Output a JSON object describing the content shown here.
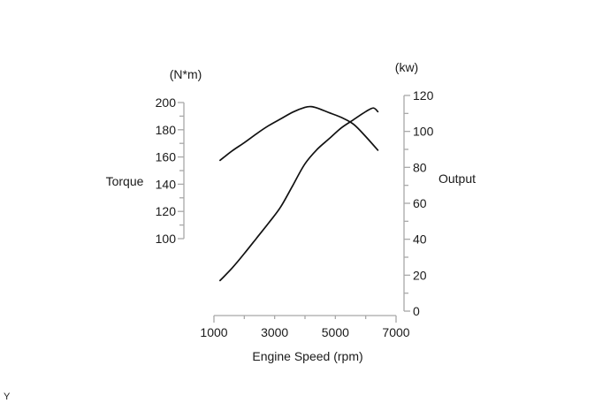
{
  "figure": {
    "corner_label": "Y",
    "background_color": "#ffffff",
    "axis_color": "#a8a8a8",
    "curve_color": "#111111",
    "text_color": "#1a1a1a"
  },
  "chart_data": {
    "type": "line",
    "title": "",
    "grid": false,
    "legend": "none",
    "x_axis": {
      "label": "Engine Speed (rpm)",
      "min": 1000,
      "max": 7000,
      "major_ticks": [
        1000,
        2000,
        3000,
        4000,
        5000,
        6000,
        7000
      ],
      "labeled_ticks": [
        1000,
        3000,
        5000,
        7000
      ]
    },
    "left_axis": {
      "unit_label": "(N*m)",
      "title": "Torque",
      "min": 100,
      "max": 200,
      "major_ticks": [
        100,
        120,
        140,
        160,
        180,
        200
      ],
      "minor_ticks": [
        110,
        130,
        150,
        170,
        190
      ]
    },
    "right_axis": {
      "unit_label": "(kw)",
      "title": "Output",
      "min": 0,
      "max": 120,
      "major_ticks": [
        0,
        20,
        40,
        60,
        80,
        100,
        120
      ],
      "minor_ticks": [
        10,
        30,
        50,
        70,
        90,
        110
      ]
    },
    "series": [
      {
        "name": "torque",
        "axis": "left",
        "unit": "N*m",
        "rpm": [
          1200,
          1600,
          2000,
          2400,
          2800,
          3200,
          3600,
          4000,
          4200,
          4400,
          4800,
          5200,
          5600,
          6000,
          6400
        ],
        "values": [
          157.5,
          164.5,
          170.5,
          177,
          183,
          188,
          193,
          196.5,
          197,
          196,
          192.5,
          189,
          184,
          175,
          165
        ]
      },
      {
        "name": "output",
        "axis": "right",
        "unit": "kw",
        "rpm": [
          1200,
          1600,
          2000,
          2400,
          2800,
          3200,
          3600,
          4000,
          4400,
          4800,
          5200,
          5600,
          6000,
          6250,
          6400
        ],
        "values": [
          17,
          24,
          32,
          40.5,
          49,
          58,
          70,
          82,
          90,
          96,
          102,
          106.5,
          111,
          113,
          111
        ]
      }
    ]
  }
}
